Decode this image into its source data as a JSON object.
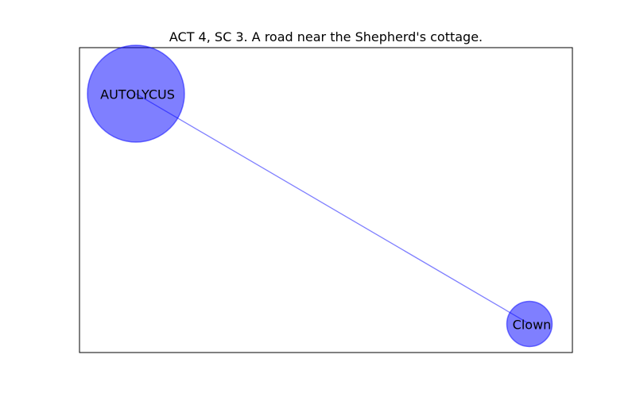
{
  "title": "ACT 4, SC 3. A road near the Shepherd's cottage.",
  "colors": {
    "node_fill": "#0000ff",
    "node_opacity": 0.5,
    "edge": "#0000ff",
    "frame": "#000000"
  },
  "graph": {
    "nodes": [
      {
        "id": "autolycus",
        "label": "AUTOLYCUS"
      },
      {
        "id": "clown",
        "label": "Clown"
      }
    ],
    "edges": [
      {
        "source": "autolycus",
        "target": "clown"
      }
    ]
  }
}
